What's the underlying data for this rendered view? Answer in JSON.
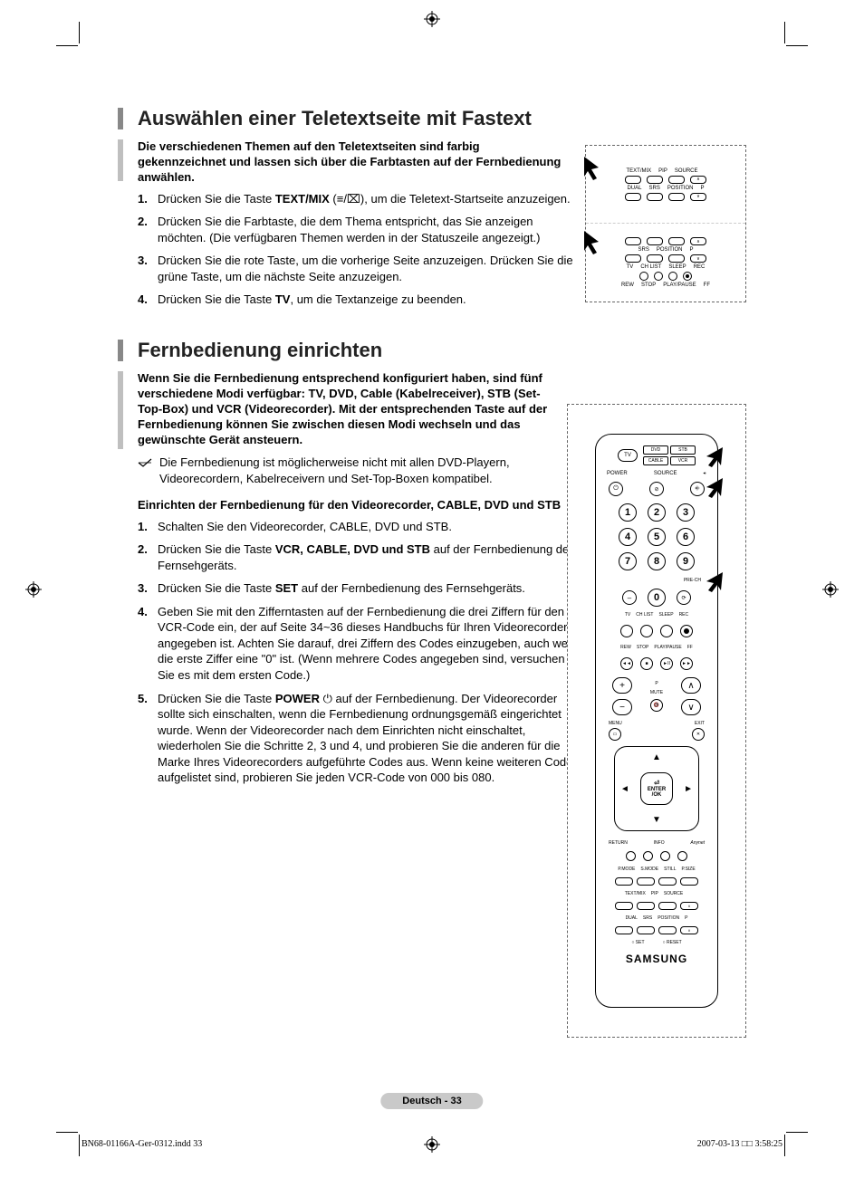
{
  "section1": {
    "title": "Auswählen einer Teletextseite mit Fastext",
    "intro": "Die verschiedenen Themen auf den Teletextseiten sind farbig gekennzeichnet und lassen sich über die Farbtasten auf der Fernbedienung anwählen.",
    "steps": [
      {
        "n": "1.",
        "pre": "Drücken Sie die Taste ",
        "bold": "TEXT/MIX",
        "post": " (≡/⌧), um die Teletext-Startseite anzuzeigen."
      },
      {
        "n": "2.",
        "pre": "Drücken Sie die Farbtaste, die dem Thema entspricht, das Sie anzeigen möchten. (Die verfügbaren Themen werden in der Statuszeile angezeigt.)",
        "bold": "",
        "post": ""
      },
      {
        "n": "3.",
        "pre": "Drücken Sie die rote Taste, um die vorherige Seite anzuzeigen. Drücken Sie die grüne Taste, um die nächste Seite anzuzeigen.",
        "bold": "",
        "post": ""
      },
      {
        "n": "4.",
        "pre": "Drücken Sie die Taste ",
        "bold": "TV",
        "post": ", um die Textanzeige zu beenden."
      }
    ]
  },
  "section2": {
    "title": "Fernbedienung einrichten",
    "intro": "Wenn Sie die Fernbedienung entsprechend konfiguriert haben, sind fünf verschiedene Modi verfügbar: TV, DVD, Cable (Kabelreceiver), STB (Set-Top-Box) und VCR (Videorecorder). Mit der entsprechenden Taste auf der Fernbedienung können Sie zwischen diesen Modi wechseln und das gewünschte Gerät ansteuern.",
    "note": "Die Fernbedienung ist möglicherweise nicht mit allen DVD-Playern, Videorecordern, Kabelreceivern und Set-Top-Boxen kompatibel.",
    "subheading": "Einrichten der Fernbedienung für den Videorecorder, CABLE, DVD und STB",
    "steps": [
      {
        "n": "1.",
        "pre": "Schalten Sie den Videorecorder, CABLE, DVD und STB.",
        "bold": "",
        "post": ""
      },
      {
        "n": "2.",
        "pre": "Drücken Sie die Taste ",
        "bold": "VCR, CABLE, DVD und STB",
        "post": " auf der Fernbedienung des Fernsehgeräts."
      },
      {
        "n": "3.",
        "pre": "Drücken Sie die Taste ",
        "bold": "SET",
        "post": " auf der Fernbedienung des Fernsehgeräts."
      },
      {
        "n": "4.",
        "pre": "Geben Sie mit den Zifferntasten auf der Fernbedienung die drei Ziffern für den VCR-Code ein, der auf Seite 34~36 dieses Handbuchs für Ihren Videorecorder angegeben ist. Achten Sie darauf, drei Ziffern des Codes einzugeben, auch wenn die erste Ziffer eine \"0\" ist. (Wenn mehrere Codes angegeben sind, versuchen Sie es mit dem ersten Code.)",
        "bold": "",
        "post": ""
      },
      {
        "n": "5.",
        "pre": "Drücken Sie die Taste ",
        "bold": "POWER",
        "post": " ⏻  auf der Fernbedienung. Der Videorecorder sollte sich einschalten, wenn die Fernbedienung ordnungsgemäß eingerichtet wurde. Wenn der Videorecorder nach dem Einrichten nicht einschaltet, wiederholen Sie die Schritte 2, 3 und 4, und probieren Sie die anderen für die Marke Ihres Videorecorders aufgeführte Codes aus. Wenn keine weiteren Codes aufgelistet sind, probieren Sie jeden VCR-Code von 000 bis 080."
      }
    ]
  },
  "remote_small": {
    "row1_labels": [
      "TEXT/MIX",
      "PIP",
      "SOURCE",
      ""
    ],
    "row2_labels": [
      "DUAL",
      "SRS",
      "POSITION",
      "P"
    ],
    "panel2_labels1": [
      "",
      "",
      "",
      ""
    ],
    "panel2_row2": [
      "TV",
      "CH LIST",
      "SLEEP",
      "REC"
    ],
    "panel2_row3": [
      "REW",
      "STOP",
      "PLAY/PAUSE",
      "FF"
    ]
  },
  "remote": {
    "tv": "TV",
    "modes": [
      "DVD",
      "STB",
      "CABLE",
      "VCR"
    ],
    "power": "POWER",
    "source": "SOURCE",
    "numbers": [
      "1",
      "2",
      "3",
      "4",
      "5",
      "6",
      "7",
      "8",
      "9",
      "0"
    ],
    "prech": "PRE-CH",
    "row_labels": [
      "TV",
      "CH LIST",
      "SLEEP",
      "REC"
    ],
    "transport": [
      "REW",
      "STOP",
      "PLAY/PAUSE",
      "FF"
    ],
    "mute": "MUTE",
    "p": "P",
    "menu": "MENU",
    "exit": "EXIT",
    "enter": "ENTER",
    "ok": "/OK",
    "return": "RETURN",
    "info": "INFO",
    "bottom_labels1": [
      "P.MODE",
      "S.MODE",
      "STILL",
      "P.SIZE"
    ],
    "bottom_labels2": [
      "TEXT/MIX",
      "PIP",
      "SOURCE",
      ""
    ],
    "bottom_labels3": [
      "DUAL",
      "SRS",
      "POSITION",
      "P"
    ],
    "set": "SET",
    "reset": "RESET",
    "brand": "SAMSUNG"
  },
  "badge": "Deutsch - 33",
  "footer_left": "BN68-01166A-Ger-0312.indd   33",
  "footer_right": "2007-03-13   □□ 3:58:25",
  "colors": {
    "header_bar": "#888888",
    "intro_bar": "#bfbfbf",
    "badge_bg": "#c9c9c9"
  }
}
